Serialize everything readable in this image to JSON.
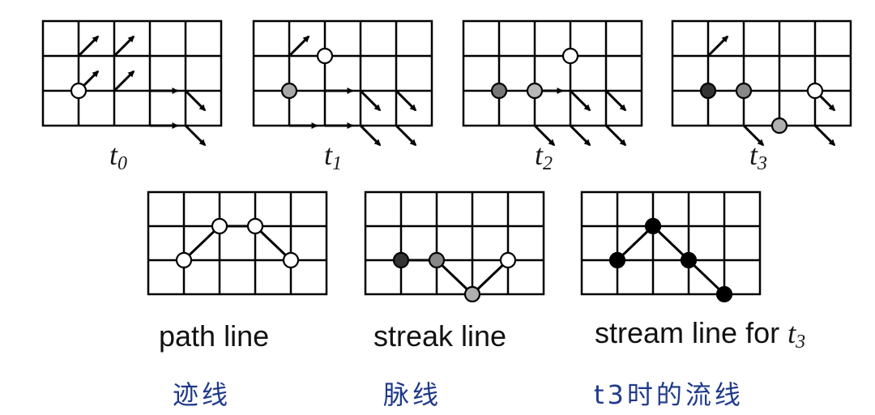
{
  "top_panels": [
    {
      "label_base": "t",
      "label_sub": "0",
      "arrows": [
        [
          1,
          0,
          "NE"
        ],
        [
          2,
          0,
          "NE"
        ],
        [
          1,
          1,
          "NE"
        ],
        [
          2,
          1,
          "NE"
        ],
        [
          3,
          1,
          "E"
        ],
        [
          4,
          1,
          "SE"
        ],
        [
          3,
          2,
          "E"
        ],
        [
          4,
          2,
          "SE"
        ]
      ],
      "dots": [
        [
          1,
          2,
          "#ffffff"
        ]
      ]
    },
    {
      "label_base": "t",
      "label_sub": "1",
      "arrows": [
        [
          1,
          0,
          "NE"
        ],
        [
          2,
          1,
          "E"
        ],
        [
          3,
          1,
          "SE"
        ],
        [
          4,
          1,
          "SE"
        ],
        [
          1,
          2,
          "E"
        ],
        [
          2,
          2,
          "E"
        ],
        [
          3,
          2,
          "SE"
        ],
        [
          4,
          2,
          "SE"
        ]
      ],
      "dots": [
        [
          2,
          1,
          "#ffffff"
        ],
        [
          1,
          2,
          "#a8a8a8"
        ]
      ]
    },
    {
      "label_base": "t",
      "label_sub": "2",
      "arrows": [
        [
          2,
          1,
          "E"
        ],
        [
          3,
          1,
          "SE"
        ],
        [
          4,
          1,
          "SE"
        ],
        [
          2,
          2,
          "SE"
        ],
        [
          3,
          2,
          "SE"
        ],
        [
          4,
          2,
          "SE"
        ]
      ],
      "dots": [
        [
          3,
          1,
          "#ffffff"
        ],
        [
          1,
          2,
          "#777777"
        ],
        [
          2,
          2,
          "#b8b8b8"
        ]
      ]
    },
    {
      "label_base": "t",
      "label_sub": "3",
      "arrows": [
        [
          1,
          0,
          "NE"
        ],
        [
          4,
          1,
          "SE"
        ],
        [
          2,
          2,
          "SE"
        ],
        [
          4,
          2,
          "SE"
        ]
      ],
      "dots": [
        [
          1,
          2,
          "#333333"
        ],
        [
          2,
          2,
          "#888888"
        ],
        [
          4,
          2,
          "#ffffff"
        ],
        [
          3,
          3,
          "#b0b0b0"
        ]
      ]
    }
  ],
  "bottom_panels": [
    {
      "caption": "path line",
      "polyline": [
        [
          1,
          2
        ],
        [
          2,
          1
        ],
        [
          3,
          1
        ],
        [
          4,
          2
        ]
      ],
      "dots": [
        [
          1,
          2,
          "#ffffff"
        ],
        [
          2,
          1,
          "#ffffff"
        ],
        [
          3,
          1,
          "#ffffff"
        ],
        [
          4,
          2,
          "#ffffff"
        ]
      ]
    },
    {
      "caption": "streak line",
      "polyline": [
        [
          1,
          2
        ],
        [
          2,
          2
        ],
        [
          3,
          3
        ],
        [
          4,
          2
        ]
      ],
      "dots": [
        [
          1,
          2,
          "#333333"
        ],
        [
          2,
          2,
          "#888888"
        ],
        [
          3,
          3,
          "#b0b0b0"
        ],
        [
          4,
          2,
          "#ffffff"
        ]
      ]
    },
    {
      "caption": "stream line for",
      "caption_sub_base": "t",
      "caption_sub_index": "3",
      "polyline": [
        [
          1,
          2
        ],
        [
          2,
          1
        ],
        [
          3,
          2
        ],
        [
          4,
          3
        ]
      ],
      "dots": [
        [
          1,
          2,
          "#000000"
        ],
        [
          2,
          1,
          "#000000"
        ],
        [
          3,
          2,
          "#000000"
        ],
        [
          4,
          3,
          "#000000"
        ]
      ]
    }
  ],
  "chinese_labels": [
    "迹线",
    "脉线",
    "t3时的流线"
  ],
  "colors": {
    "grid": "#000000",
    "chinese_text": "#1f3a8a"
  }
}
